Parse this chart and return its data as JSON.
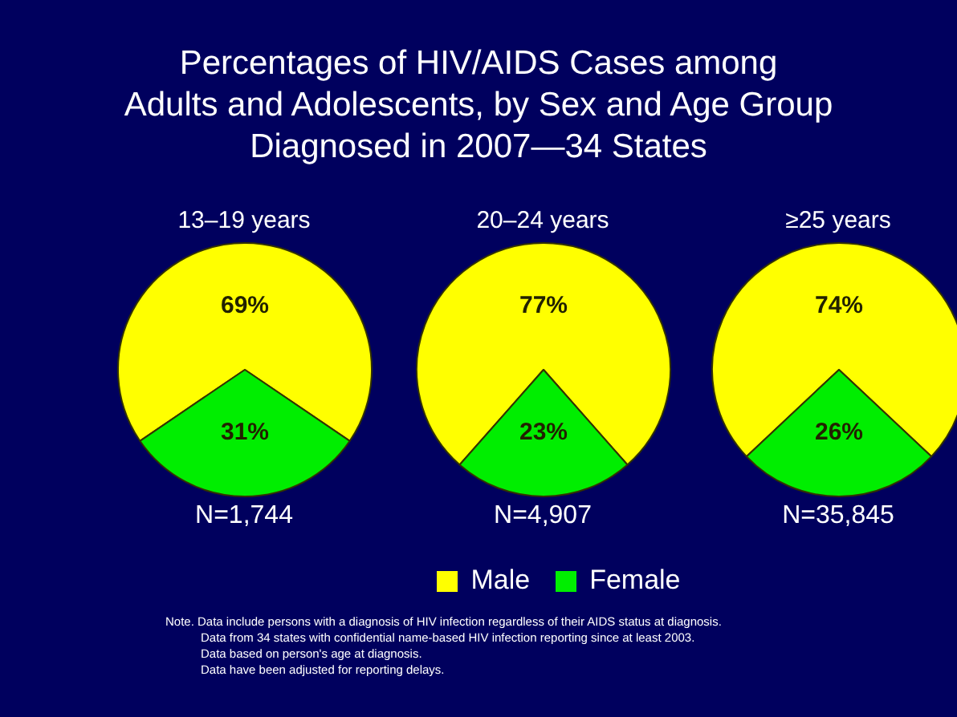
{
  "chart_data": {
    "type": "pie",
    "title": "Percentages of HIV/AIDS Cases among\nAdults and Adolescents, by Sex and Age Group\nDiagnosed in 2007—34 States",
    "categories": [
      "Male",
      "Female"
    ],
    "colors": [
      "#ffff00",
      "#00ee00"
    ],
    "legend": "bottom",
    "series": [
      {
        "name": "13–19 years",
        "values": [
          69,
          31
        ],
        "value_labels": [
          "69%",
          "31%"
        ]
      },
      {
        "name": "20–24 years",
        "values": [
          77,
          23
        ],
        "value_labels": [
          "77%",
          "23%"
        ]
      },
      {
        "name": "≥25 years",
        "values": [
          74,
          26
        ],
        "value_labels": [
          "74%",
          "26%"
        ]
      }
    ],
    "annotations": [
      {
        "text": "N=1,744",
        "x": "13–19 years"
      },
      {
        "text": "N=4,907",
        "x": "20–24 years"
      },
      {
        "text": "N=35,845",
        "x": "≥25 years"
      },
      "Note. Data include persons with a diagnosis of HIV infection regardless of their AIDS status at diagnosis.",
      "Data from 34 states with confidential name-based HIV infection reporting since at least 2003.",
      "Data based on person's age at diagnosis.",
      "Data have been adjusted for reporting delays."
    ]
  }
}
